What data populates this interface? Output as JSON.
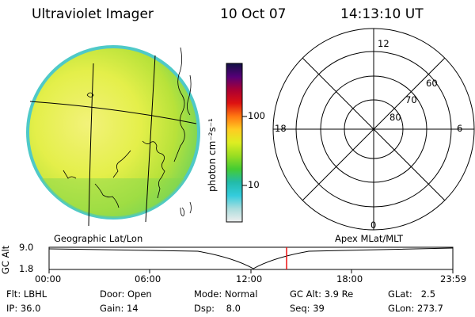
{
  "header": {
    "instrument": "Ultraviolet Imager",
    "date": "10 Oct 07",
    "time": "14:13:10 UT"
  },
  "colorbar": {
    "unit_label": "photon cm⁻²s⁻¹",
    "ticks": [
      {
        "value": 100,
        "label": "100"
      },
      {
        "value": 10,
        "label": "10"
      }
    ],
    "colors": [
      "#111144",
      "#550077",
      "#aa0033",
      "#dd1111",
      "#ff7711",
      "#ffcc22",
      "#ddee22",
      "#99dd22",
      "#44cc33",
      "#22bbaa",
      "#33ccdd",
      "#aadddd",
      "#eeeeee"
    ]
  },
  "image_panel": {
    "caption": "Geographic Lat/Lon",
    "disk_color_center": "#f2f27a",
    "disk_color_edge": "#6fd35a",
    "rim_color": "#4fc9c8"
  },
  "polar_plot": {
    "caption": "Apex MLat/MLT",
    "mlt_labels": {
      "top": "12",
      "bottom": "0",
      "left": "18",
      "right": "6"
    },
    "lat_labels": [
      "60",
      "70",
      "80"
    ]
  },
  "altitude_track": {
    "axis_label": "GC Alt",
    "y_ticks": [
      "9.0",
      "1.8"
    ],
    "x_ticks": [
      "00:00",
      "06:00",
      "12:00",
      "18:00",
      "23:59"
    ],
    "marker_color": "#ee1111"
  },
  "status": {
    "row1": [
      {
        "key": "Flt:",
        "value": "LBHL"
      },
      {
        "key": "Door:",
        "value": "Open"
      },
      {
        "key": "Mode:",
        "value": "Normal"
      },
      {
        "key": "GC Alt:",
        "value": "3.9 Re"
      },
      {
        "key": "GLat:",
        "value": "2.5"
      }
    ],
    "row2": [
      {
        "key": "IP:",
        "value": "36.0"
      },
      {
        "key": "Gain:",
        "value": "14"
      },
      {
        "key": "Dsp:",
        "value": "8.0"
      },
      {
        "key": "Seq:",
        "value": "39"
      },
      {
        "key": "GLon:",
        "value": "273.7"
      }
    ]
  }
}
